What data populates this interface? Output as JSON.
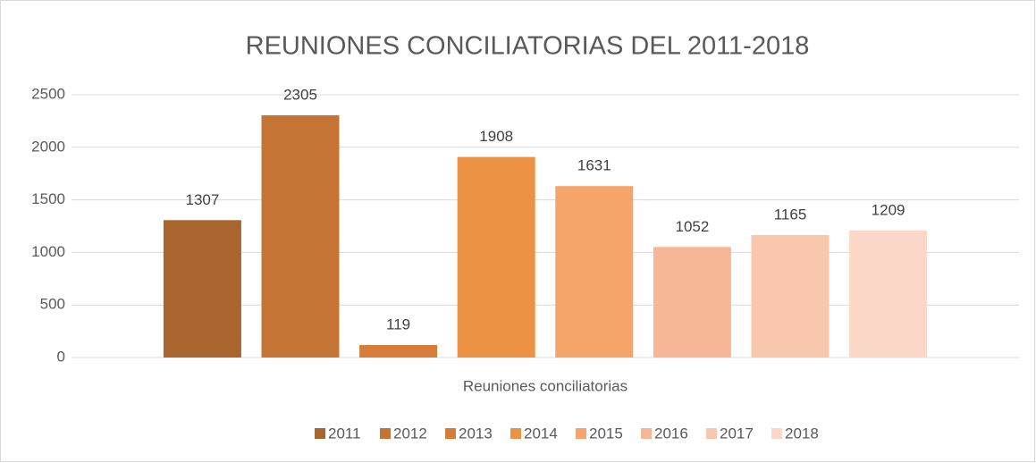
{
  "chart_data": {
    "type": "bar",
    "title": "REUNIONES CONCILIATORIAS DEL 2011-2018",
    "categories": [
      "Reuniones conciliatorias"
    ],
    "series": [
      {
        "name": "2011",
        "color": "#a9652e",
        "values": [
          1307
        ]
      },
      {
        "name": "2012",
        "color": "#c47535",
        "values": [
          2305
        ]
      },
      {
        "name": "2013",
        "color": "#d57e3a",
        "values": [
          119
        ]
      },
      {
        "name": "2014",
        "color": "#ec9244",
        "values": [
          1908
        ]
      },
      {
        "name": "2015",
        "color": "#f5a46a",
        "values": [
          1631
        ]
      },
      {
        "name": "2016",
        "color": "#f7b796",
        "values": [
          1052
        ]
      },
      {
        "name": "2017",
        "color": "#f9c6ae",
        "values": [
          1165
        ]
      },
      {
        "name": "2018",
        "color": "#fbd8c8",
        "values": [
          1209
        ]
      }
    ],
    "ylim": [
      0,
      2500
    ],
    "yticks": [
      0,
      500,
      1000,
      1500,
      2000,
      2500
    ],
    "grid": true,
    "legend": "bottom"
  }
}
